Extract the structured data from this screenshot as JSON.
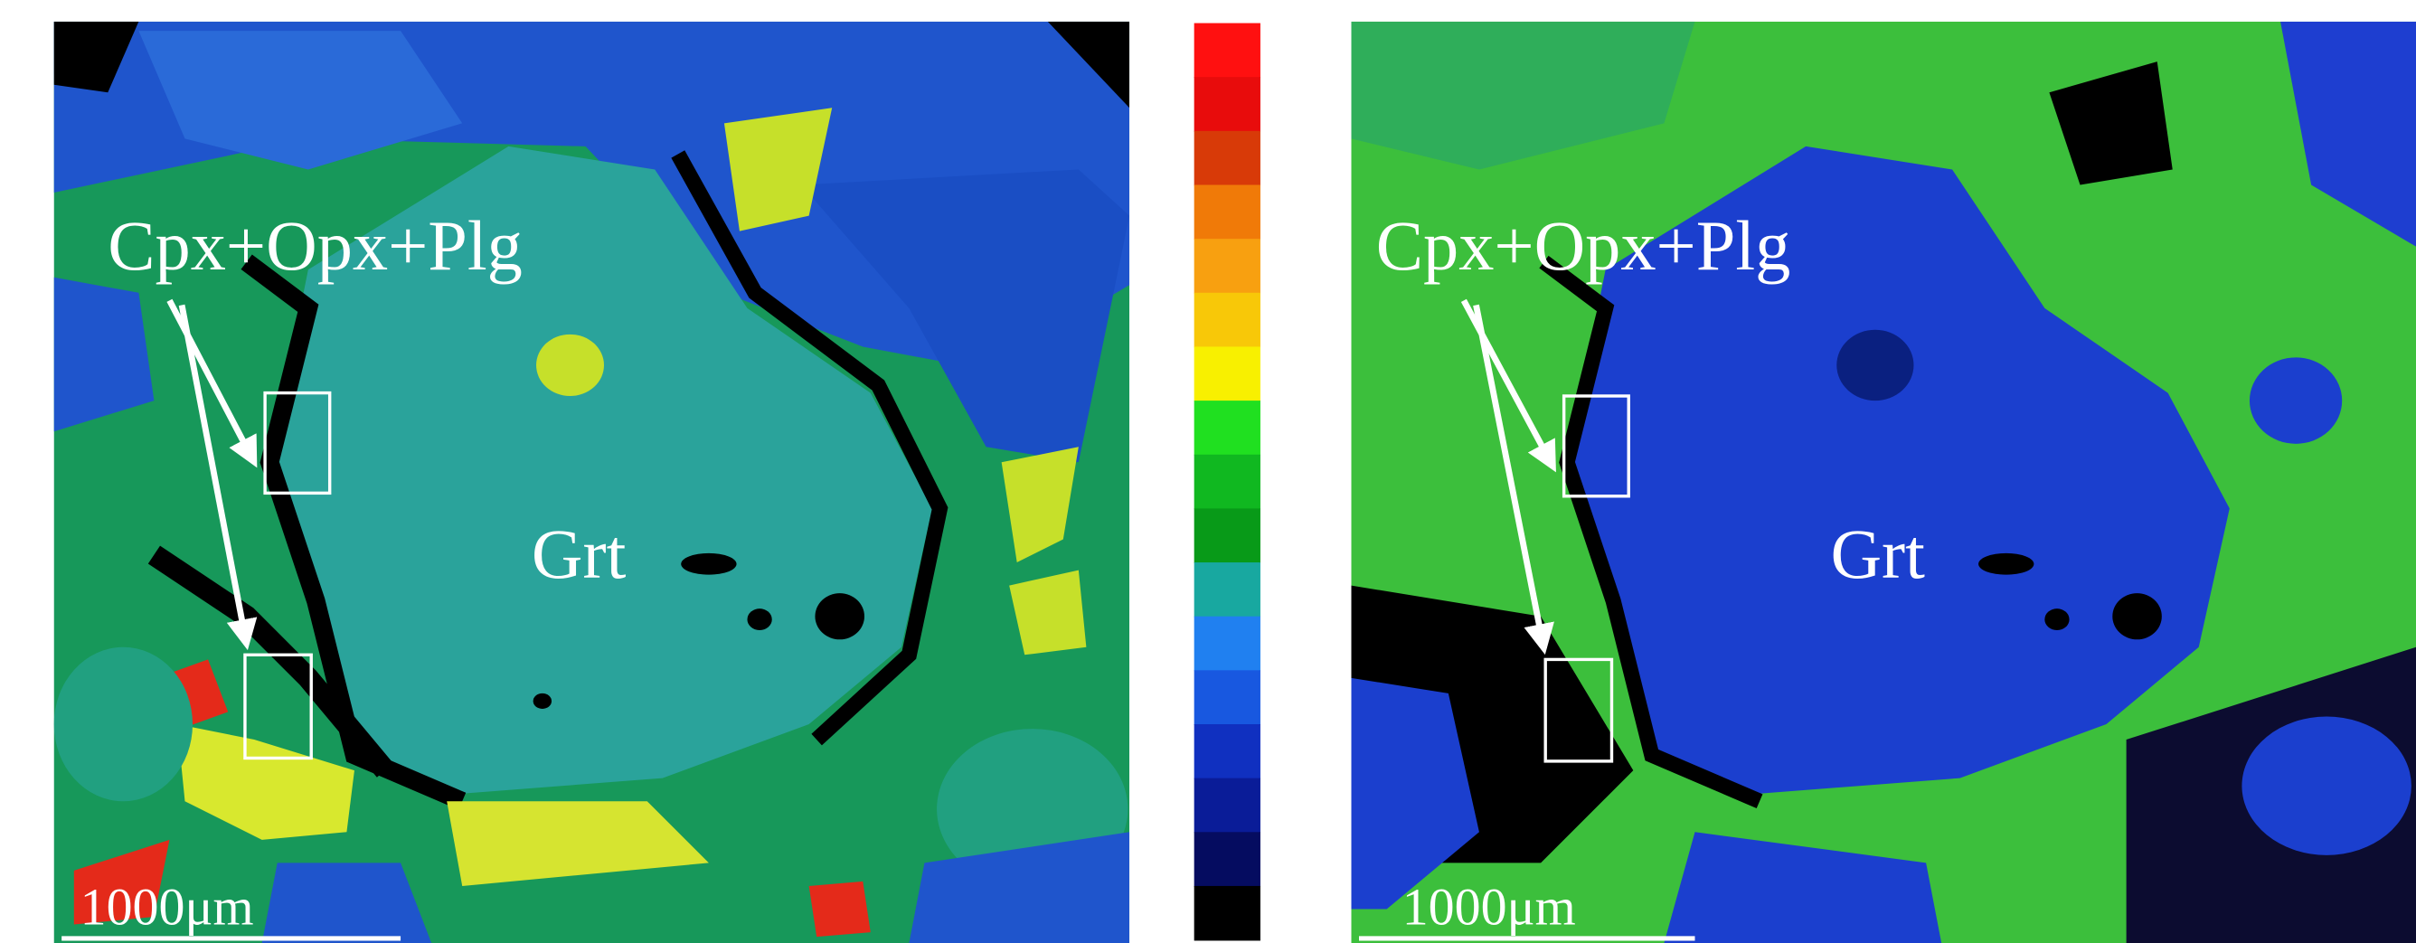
{
  "panels": [
    {
      "assemblage": "Cpx+Opx+Plg",
      "mineral": "Grt",
      "scale_bar": "1000μm"
    },
    {
      "assemblage": "Cpx+Opx+Plg",
      "mineral": "Grt",
      "scale_bar": "1000μm"
    }
  ]
}
